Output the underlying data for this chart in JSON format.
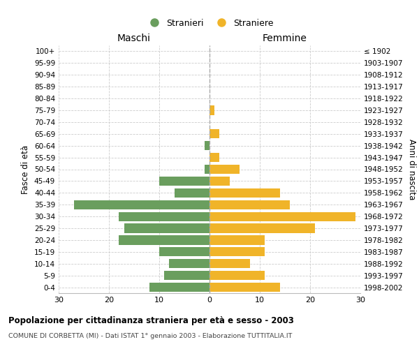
{
  "age_groups": [
    "0-4",
    "5-9",
    "10-14",
    "15-19",
    "20-24",
    "25-29",
    "30-34",
    "35-39",
    "40-44",
    "45-49",
    "50-54",
    "55-59",
    "60-64",
    "65-69",
    "70-74",
    "75-79",
    "80-84",
    "85-89",
    "90-94",
    "95-99",
    "100+"
  ],
  "birth_years": [
    "1998-2002",
    "1993-1997",
    "1988-1992",
    "1983-1987",
    "1978-1982",
    "1973-1977",
    "1968-1972",
    "1963-1967",
    "1958-1962",
    "1953-1957",
    "1948-1952",
    "1943-1947",
    "1938-1942",
    "1933-1937",
    "1928-1932",
    "1923-1927",
    "1918-1922",
    "1913-1917",
    "1908-1912",
    "1903-1907",
    "≤ 1902"
  ],
  "males": [
    12,
    9,
    8,
    10,
    18,
    17,
    18,
    27,
    7,
    10,
    1,
    0,
    1,
    0,
    0,
    0,
    0,
    0,
    0,
    0,
    0
  ],
  "females": [
    14,
    11,
    8,
    11,
    11,
    21,
    29,
    16,
    14,
    4,
    6,
    2,
    0,
    2,
    0,
    1,
    0,
    0,
    0,
    0,
    0
  ],
  "male_color": "#6a9e5e",
  "female_color": "#f0b429",
  "title": "Popolazione per cittadinanza straniera per età e sesso - 2003",
  "subtitle": "COMUNE DI CORBETTA (MI) - Dati ISTAT 1° gennaio 2003 - Elaborazione TUTTITALIA.IT",
  "xlabel_left": "Maschi",
  "xlabel_right": "Femmine",
  "ylabel_left": "Fasce di età",
  "ylabel_right": "Anni di nascita",
  "legend_male": "Stranieri",
  "legend_female": "Straniere",
  "xlim": 30,
  "background_color": "#ffffff",
  "grid_color": "#cccccc"
}
